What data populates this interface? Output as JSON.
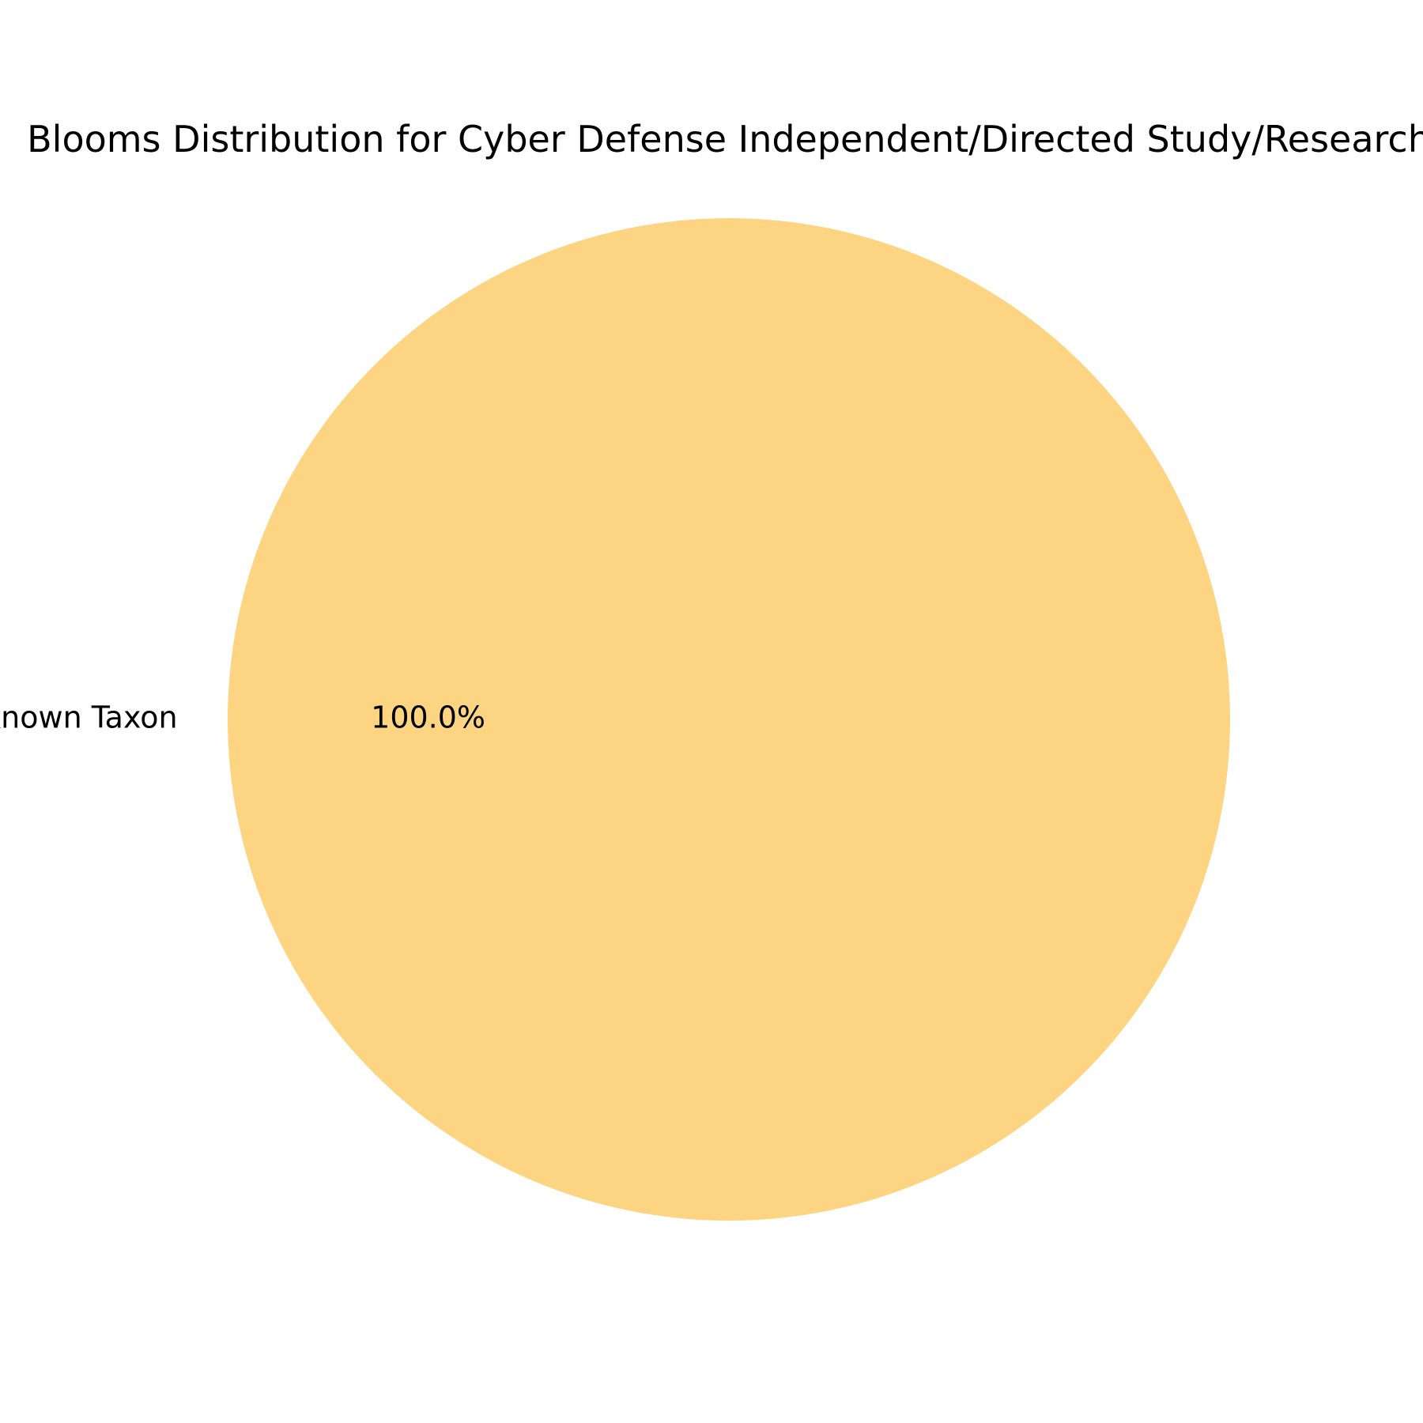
{
  "chart_data": {
    "type": "pie",
    "title": "Blooms Distribution for Cyber Defense Independent/Directed Study/Research",
    "categories": [
      "Unknown Taxon"
    ],
    "values": [
      100
    ],
    "percent_labels": [
      "100.0%"
    ],
    "colors": [
      "#FDD582"
    ],
    "legend": "none"
  }
}
